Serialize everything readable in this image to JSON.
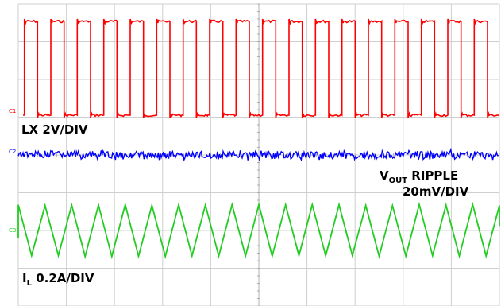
{
  "chart_data": {
    "type": "line",
    "title": "",
    "grid": true,
    "divisions": {
      "horizontal": 10,
      "vertical": 8
    },
    "series": [
      {
        "name": "LX 2V/DIV",
        "label_main": "LX 2V/DIV",
        "channel_marker": "C1",
        "color": "#ff0000",
        "waveform": "square",
        "cycles": 18,
        "duty": 0.5,
        "high_div": 2.8,
        "low_div": 0.0,
        "scale": "2V/DIV"
      },
      {
        "name": "VOUT RIPPLE 20mV/DIV",
        "label_main": "V",
        "label_sub": "OUT",
        "label_rest": " RIPPLE",
        "label_line2": "20mV/DIV",
        "channel_marker": "C2",
        "color": "#0000ff",
        "waveform": "noise",
        "amplitude_div": 0.2,
        "scale": "20mV/DIV"
      },
      {
        "name": "IL 0.2A/DIV",
        "label_main": "I",
        "label_sub": "L",
        "label_rest": " 0.2A/DIV",
        "channel_marker": "C3",
        "color": "#22cc22",
        "waveform": "triangle",
        "cycles": 18,
        "peak_to_peak_div": 1.6,
        "scale": "0.2A/DIV"
      }
    ]
  }
}
